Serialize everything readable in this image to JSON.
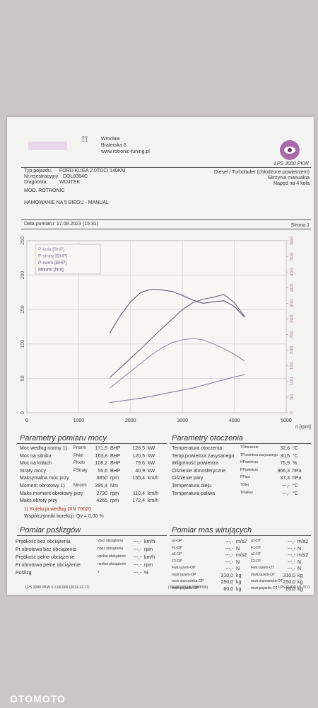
{
  "header": {
    "city": "Wrocław",
    "street": "Braterska 6",
    "website": "www.rotronic-tuning.pl",
    "brand": "LPS 3000 PKW"
  },
  "vehicle": {
    "type_label": "Typ pojazdu:",
    "type": "FORD KUGA 2.0TDCI 140KM",
    "reg_label": "Nr.rejestracyjny",
    "reg": "DOL8384C",
    "diag_label": "Diagnosta:",
    "diag": "WOJTEK",
    "engine": "Diesel / Turbolader (chłodzone powietrzem)",
    "gearbox": "Skrzynia manualna",
    "drive": "Napęd na 4 koła",
    "mod": "MOD. ROTRONIC",
    "test": "HAMOWANIE NA 5 BIEGU - MANUAL",
    "date": "Data pomiaru: 17.08.2023 (15:31)",
    "page": "Strona 1"
  },
  "chart_data": {
    "type": "line",
    "x_label": "n [rpm]",
    "x": [
      1600,
      1800,
      2000,
      2200,
      2400,
      2600,
      2800,
      3000,
      3200,
      3400,
      3600,
      3800,
      4000,
      4200
    ],
    "xlim": [
      0,
      5000
    ],
    "xticks": [
      0,
      1000,
      2000,
      3000,
      4000,
      5000
    ],
    "ylim": [
      0,
      250
    ],
    "yticks": [
      0,
      50,
      100,
      150,
      200,
      250
    ],
    "y2lim": [
      0,
      550
    ],
    "y2ticks": [
      0,
      50,
      100,
      150,
      200,
      250,
      300,
      350,
      400,
      450,
      500,
      550
    ],
    "grid": true,
    "series": [
      {
        "name": "P-koła [BHP]",
        "color": "#9a8aa6",
        "values": [
          36,
          48,
          60,
          72,
          84,
          94,
          102,
          106,
          108,
          106,
          100,
          93,
          85,
          75
        ]
      },
      {
        "name": "P-straty [BHP]",
        "color": "#8b7b98",
        "values": [
          15,
          17,
          19,
          21,
          24,
          27,
          30,
          33,
          36,
          40,
          44,
          48,
          52,
          55.6
        ]
      },
      {
        "name": "P-norm [BHP]",
        "color": "#6e5f7c",
        "values": [
          51,
          65,
          79,
          93,
          108,
          122,
          136,
          150,
          160,
          165,
          168,
          171.9,
          160,
          140
        ]
      },
      {
        "name": "Mnorm [Nm]",
        "color": "#5f506e",
        "axis": "y2",
        "values": [
          255,
          310,
          355,
          385,
          395,
          393,
          388,
          375,
          360,
          350,
          355,
          358,
          340,
          305
        ]
      }
    ]
  },
  "power": {
    "title": "Parametry pomiaru mocy",
    "rows": [
      {
        "label": "Moc według normy 1)",
        "symbol": "Pnorm",
        "value": "171,9",
        "unit": "BHP",
        "value2": "126,5",
        "unit2": "kW"
      },
      {
        "label": "Moc na silniku",
        "symbol": "PMot",
        "value": "163,8",
        "unit": "BHP",
        "value2": "120,5",
        "unit2": "kW"
      },
      {
        "label": "Moc na kołach",
        "symbol": "PKoło",
        "value": "108,2",
        "unit": "BHP",
        "value2": "79,6",
        "unit2": "kW"
      },
      {
        "label": "Straty mocy",
        "symbol": "PStraty",
        "value": "55,6",
        "unit": "BHP",
        "value2": "40,9",
        "unit2": "kW"
      },
      {
        "label": "Maksymalna moc przy",
        "value": "3850",
        "unit": "rpm",
        "value2": "155,4",
        "unit2": "km/h"
      },
      {
        "label": "Moment obrotowy 1)",
        "symbol": "Mnorm",
        "value": "395,4",
        "unit": "Nm"
      },
      {
        "label": "Maks.moment obrotowy przy",
        "value": "2730",
        "unit": "rpm",
        "value2": "110,4",
        "unit2": "km/h"
      },
      {
        "label": "Maks.obroty przy",
        "value": "4265",
        "unit": "rpm",
        "value2": "172,4",
        "unit2": "km/h"
      }
    ],
    "note1": "1) Korekcja według DIN 70020",
    "note2": "Współczynniki korekcji: Qv = 0,00 %"
  },
  "environment": {
    "title": "Parametry otoczenia",
    "rows": [
      {
        "label": "Temperatura otoczenia",
        "symbol": "TOtoczenie",
        "value": "32,6",
        "unit": "°C"
      },
      {
        "label": "Temp.powietrza zasysanego",
        "symbol": "TPowietrza zasysanego",
        "value": "30,5",
        "unit": "°C"
      },
      {
        "label": "Wilgotność powietrza",
        "symbol": "HPowietrze",
        "value": "75,9",
        "unit": "%"
      },
      {
        "label": "Ciśnienie atmosferyczne",
        "symbol": "PPowietrze",
        "value": "966,3",
        "unit": "hPa"
      },
      {
        "label": "Ciśnienie pary",
        "symbol": "PPara",
        "value": "37,3",
        "unit": "hPa"
      },
      {
        "label": "Temperatura oleju",
        "symbol": "TOlej",
        "value": "---,-",
        "unit": "°C"
      },
      {
        "label": "Temperatura paliwa",
        "symbol": "TPaliwo",
        "value": "---,-",
        "unit": "°C"
      }
    ]
  },
  "slip": {
    "title": "Pomiar poślizgów",
    "rows": [
      {
        "label": "Prędkość bez obciążenia",
        "symbol": "vbez obciążenia",
        "value": "---,-",
        "unit": "km/h"
      },
      {
        "label": "Pr.obrotowa bez obciążenia",
        "symbol": "nbez obciążenia",
        "value": "---,-",
        "unit": "rpm"
      },
      {
        "label": "Prędkość pełne obciążenie",
        "symbol": "vpełne obciążenie",
        "value": "---,-",
        "unit": "km/h"
      },
      {
        "label": "Pr.obrotowa pełne obciążenie",
        "symbol": "npełne obciążenie",
        "value": "---,-",
        "unit": "rpm"
      },
      {
        "label": "Poślizg",
        "symbol": "s",
        "value": "---,-",
        "unit": "%"
      }
    ]
  },
  "masses": {
    "title": "Pomiar mas wirujących",
    "left": [
      {
        "symbol": "a1-OP",
        "value": "---,-",
        "unit": "m/s2"
      },
      {
        "symbol": "F1-OP",
        "value": "---,-",
        "unit": "N"
      },
      {
        "symbol": "a2-OP",
        "value": "---,-",
        "unit": "m/s2"
      },
      {
        "symbol": "F2-OP",
        "value": "---,-",
        "unit": "N"
      },
      {
        "symbol": "Fwir.razem-OP",
        "value": "---,-",
        "unit": "N"
      },
      {
        "symbol": "mwir.razem-OP",
        "value": "310,0",
        "unit": "kg"
      },
      {
        "symbol": "mwir.stanowiska-OP",
        "value": "250,0",
        "unit": "kg"
      },
      {
        "symbol": "mwir.pojazdu-OP",
        "value": "60,0",
        "unit": "kg"
      }
    ],
    "right": [
      {
        "symbol": "a1-OT",
        "value": "---,-",
        "unit": "m/s2"
      },
      {
        "symbol": "F1-OT",
        "value": "---,-",
        "unit": "N"
      },
      {
        "symbol": "a2-OT",
        "value": "---,-",
        "unit": "m/s2"
      },
      {
        "symbol": "F2-OT",
        "value": "---,-",
        "unit": "N"
      },
      {
        "symbol": "Fwir.razem-OT",
        "value": "---,-",
        "unit": "N"
      },
      {
        "symbol": "mwir.razem-OT",
        "value": "310,0",
        "unit": "kg"
      },
      {
        "symbol": "mwir.stanowiska-OT",
        "value": "250,0",
        "unit": "kg"
      },
      {
        "symbol": "mwir.pojazdu-OT",
        "value": "60,0",
        "unit": "kg"
      }
    ]
  },
  "footer": {
    "left": "LPS 3000 PKW V 3.00.000 (2013-12-17)",
    "center": "(100/000/0000/000/0000)",
    "right": "LPS-EURO V1.37.0"
  },
  "watermark": "OTOMOTO"
}
